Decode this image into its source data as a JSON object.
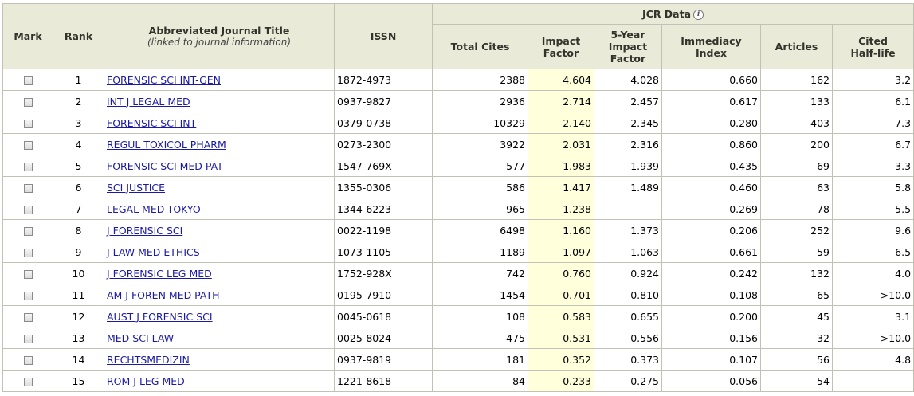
{
  "header": {
    "mark": "Mark",
    "rank": "Rank",
    "title": "Abbreviated Journal Title",
    "title_sub": "(linked to journal information)",
    "issn": "ISSN",
    "jcr_data": "JCR Data",
    "total_cites": "Total Cites",
    "impact_factor_1": "Impact",
    "impact_factor_2": "Factor",
    "five_year_1": "5-Year",
    "five_year_2": "Impact",
    "five_year_3": "Factor",
    "immediacy_1": "Immediacy",
    "immediacy_2": "Index",
    "articles": "Articles",
    "halflife_1": "Cited",
    "halflife_2": "Half-life"
  },
  "colors": {
    "header_bg": "#e9ead8",
    "impact_bg": "#ffffdc",
    "link": "#1a1aa6"
  },
  "rows": [
    {
      "rank": "1",
      "title": "FORENSIC SCI INT-GEN",
      "issn": "1872-4973",
      "total_cites": "2388",
      "impact": "4.604",
      "five_year": "4.028",
      "immediacy": "0.660",
      "articles": "162",
      "halflife": "3.2"
    },
    {
      "rank": "2",
      "title": "INT J LEGAL MED",
      "issn": "0937-9827",
      "total_cites": "2936",
      "impact": "2.714",
      "five_year": "2.457",
      "immediacy": "0.617",
      "articles": "133",
      "halflife": "6.1"
    },
    {
      "rank": "3",
      "title": "FORENSIC SCI INT",
      "issn": "0379-0738",
      "total_cites": "10329",
      "impact": "2.140",
      "five_year": "2.345",
      "immediacy": "0.280",
      "articles": "403",
      "halflife": "7.3"
    },
    {
      "rank": "4",
      "title": "REGUL TOXICOL PHARM",
      "issn": "0273-2300",
      "total_cites": "3922",
      "impact": "2.031",
      "five_year": "2.316",
      "immediacy": "0.860",
      "articles": "200",
      "halflife": "6.7"
    },
    {
      "rank": "5",
      "title": "FORENSIC SCI MED PAT",
      "issn": "1547-769X",
      "total_cites": "577",
      "impact": "1.983",
      "five_year": "1.939",
      "immediacy": "0.435",
      "articles": "69",
      "halflife": "3.3"
    },
    {
      "rank": "6",
      "title": "SCI JUSTICE",
      "issn": "1355-0306",
      "total_cites": "586",
      "impact": "1.417",
      "five_year": "1.489",
      "immediacy": "0.460",
      "articles": "63",
      "halflife": "5.8"
    },
    {
      "rank": "7",
      "title": "LEGAL MED-TOKYO",
      "issn": "1344-6223",
      "total_cites": "965",
      "impact": "1.238",
      "five_year": "",
      "immediacy": "0.269",
      "articles": "78",
      "halflife": "5.5"
    },
    {
      "rank": "8",
      "title": "J FORENSIC SCI",
      "issn": "0022-1198",
      "total_cites": "6498",
      "impact": "1.160",
      "five_year": "1.373",
      "immediacy": "0.206",
      "articles": "252",
      "halflife": "9.6"
    },
    {
      "rank": "9",
      "title": "J LAW MED ETHICS",
      "issn": "1073-1105",
      "total_cites": "1189",
      "impact": "1.097",
      "five_year": "1.063",
      "immediacy": "0.661",
      "articles": "59",
      "halflife": "6.5"
    },
    {
      "rank": "10",
      "title": "J FORENSIC LEG MED",
      "issn": "1752-928X",
      "total_cites": "742",
      "impact": "0.760",
      "five_year": "0.924",
      "immediacy": "0.242",
      "articles": "132",
      "halflife": "4.0"
    },
    {
      "rank": "11",
      "title": "AM J FOREN MED PATH",
      "issn": "0195-7910",
      "total_cites": "1454",
      "impact": "0.701",
      "five_year": "0.810",
      "immediacy": "0.108",
      "articles": "65",
      "halflife": ">10.0"
    },
    {
      "rank": "12",
      "title": "AUST J FORENSIC SCI",
      "issn": "0045-0618",
      "total_cites": "108",
      "impact": "0.583",
      "five_year": "0.655",
      "immediacy": "0.200",
      "articles": "45",
      "halflife": "3.1"
    },
    {
      "rank": "13",
      "title": "MED SCI LAW",
      "issn": "0025-8024",
      "total_cites": "475",
      "impact": "0.531",
      "five_year": "0.556",
      "immediacy": "0.156",
      "articles": "32",
      "halflife": ">10.0"
    },
    {
      "rank": "14",
      "title": "RECHTSMEDIZIN",
      "issn": "0937-9819",
      "total_cites": "181",
      "impact": "0.352",
      "five_year": "0.373",
      "immediacy": "0.107",
      "articles": "56",
      "halflife": "4.8"
    },
    {
      "rank": "15",
      "title": "ROM J LEG MED",
      "issn": "1221-8618",
      "total_cites": "84",
      "impact": "0.233",
      "five_year": "0.275",
      "immediacy": "0.056",
      "articles": "54",
      "halflife": ""
    }
  ]
}
